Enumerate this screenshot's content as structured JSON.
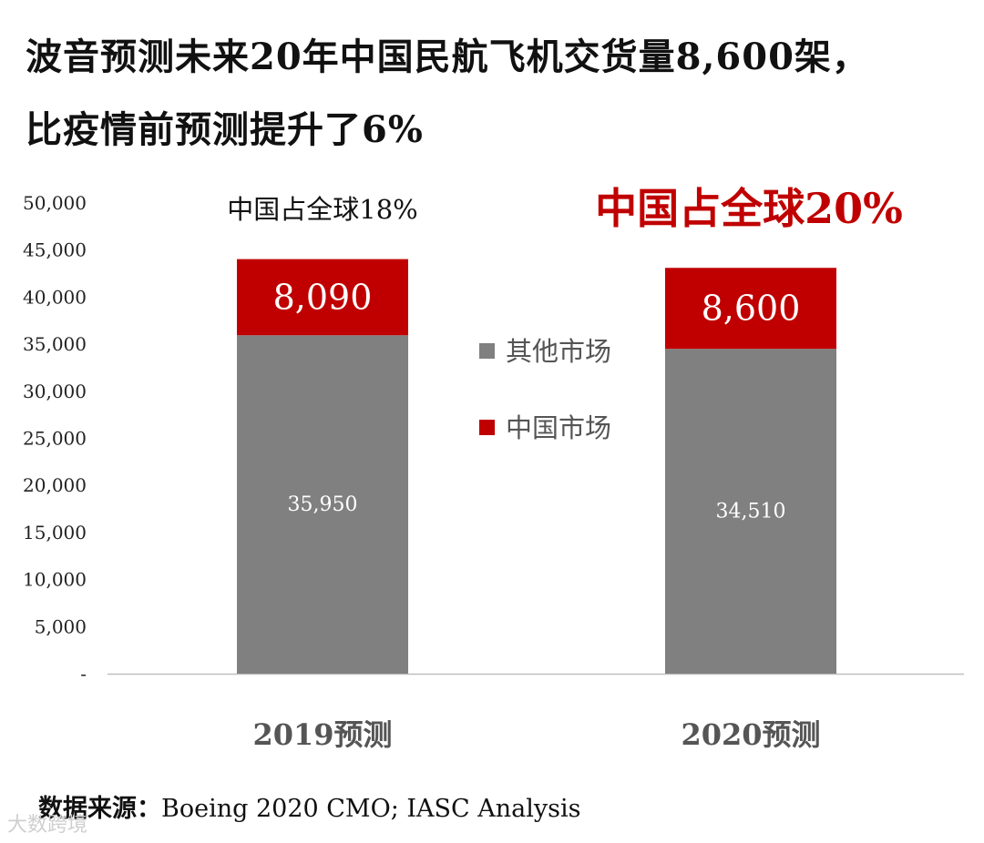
{
  "title": {
    "line1": "波音预测未来20年中国民航飞机交货量8,600架，",
    "line2": "比疫情前预测提升了6%"
  },
  "colors": {
    "other": "#808080",
    "china": "#C00000",
    "axis": "#bfbfbf",
    "highlight": "#C00000"
  },
  "chart_data": {
    "type": "bar",
    "stacked": true,
    "categories": [
      "2019预测",
      "2020预测"
    ],
    "series": [
      {
        "name": "其他市场",
        "values": [
          35950,
          34510
        ],
        "labels": [
          "35,950",
          "34,510"
        ]
      },
      {
        "name": "中国市场",
        "values": [
          8090,
          8600
        ],
        "labels": [
          "8,090",
          "8,600"
        ]
      }
    ],
    "ylim": [
      0,
      50000
    ],
    "yticks": [
      "-",
      "5,000",
      "10,000",
      "15,000",
      "20,000",
      "25,000",
      "30,000",
      "35,000",
      "40,000",
      "45,000",
      "50,000"
    ],
    "legend_position": "center",
    "grid": false,
    "annotations": [
      "中国占全球18%",
      "中国占全球20%"
    ]
  },
  "source": {
    "label": "数据来源：",
    "text": "Boeing 2020 CMO; IASC Analysis"
  },
  "watermark": "大数跨境"
}
